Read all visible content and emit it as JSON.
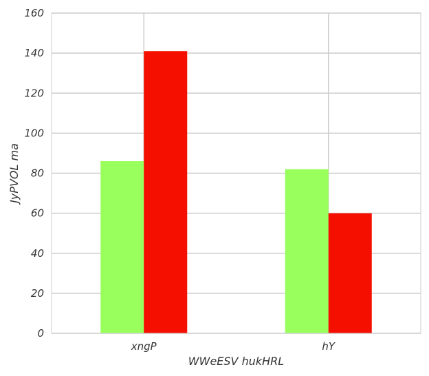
{
  "chart_data": {
    "type": "bar",
    "title": "",
    "xlabel": "WWeESV hukHRL",
    "ylabel": "JyPVOL ma",
    "categories": [
      "xngP",
      "hY"
    ],
    "series": [
      {
        "color": "#99ff5c",
        "values": [
          86,
          82
        ]
      },
      {
        "color": "#f50f00",
        "values": [
          141,
          60
        ]
      }
    ],
    "ylim": [
      0,
      160
    ],
    "yticks": [
      0,
      20,
      40,
      60,
      80,
      100,
      120,
      140,
      160
    ],
    "grid": true,
    "legend": "none"
  }
}
